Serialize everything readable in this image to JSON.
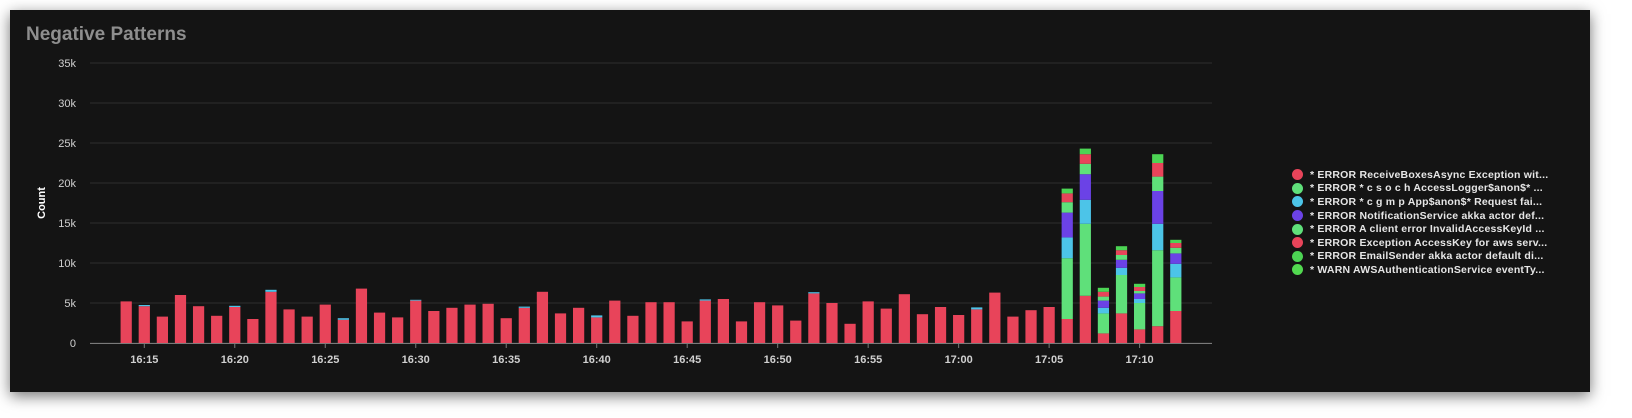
{
  "panel": {
    "title": "Negative Patterns"
  },
  "colors": {
    "background": "#141414",
    "grid": "#2e2e2e",
    "axis_text": "#d0d0d0"
  },
  "chart_data": {
    "type": "bar",
    "stacked": true,
    "ylabel": "Count",
    "ylim": [
      0,
      35000
    ],
    "yticks": [
      0,
      5000,
      10000,
      15000,
      20000,
      25000,
      30000,
      35000
    ],
    "ytick_labels": [
      "0",
      "5k",
      "10k",
      "15k",
      "20k",
      "25k",
      "30k",
      "35k"
    ],
    "x_start": "16:12",
    "x_end": "17:14",
    "xticks": [
      "16:15",
      "16:20",
      "16:25",
      "16:30",
      "16:35",
      "16:40",
      "16:45",
      "16:50",
      "16:55",
      "17:00",
      "17:05",
      "17:10"
    ],
    "grid": true,
    "legend_position": "right",
    "x": [
      "16:14",
      "16:15",
      "16:16",
      "16:17",
      "16:18",
      "16:19",
      "16:20",
      "16:21",
      "16:22",
      "16:23",
      "16:24",
      "16:25",
      "16:26",
      "16:27",
      "16:28",
      "16:29",
      "16:30",
      "16:31",
      "16:32",
      "16:33",
      "16:34",
      "16:35",
      "16:36",
      "16:37",
      "16:38",
      "16:39",
      "16:40",
      "16:41",
      "16:42",
      "16:43",
      "16:44",
      "16:45",
      "16:46",
      "16:47",
      "16:48",
      "16:49",
      "16:50",
      "16:51",
      "16:52",
      "16:53",
      "16:54",
      "16:55",
      "16:56",
      "16:57",
      "16:58",
      "16:59",
      "17:00",
      "17:01",
      "17:02",
      "17:03",
      "17:04",
      "17:05",
      "17:06",
      "17:07",
      "17:08",
      "17:09",
      "17:10",
      "17:11",
      "17:12"
    ],
    "series": [
      {
        "name": "* ERROR ReceiveBoxesAsync Exception wit...",
        "color": "#e8445a",
        "values": [
          5200,
          4600,
          3300,
          6000,
          4600,
          3400,
          4500,
          3000,
          6400,
          4200,
          3300,
          4800,
          2900,
          6800,
          3800,
          3200,
          5300,
          4000,
          4400,
          4800,
          4900,
          3100,
          4400,
          6400,
          3700,
          4400,
          3200,
          5300,
          3400,
          5100,
          5100,
          2700,
          5300,
          5500,
          2700,
          5100,
          4700,
          2800,
          6200,
          5000,
          2400,
          5200,
          4300,
          6100,
          3600,
          4500,
          3500,
          4200,
          6300,
          3300,
          4100,
          4500,
          3000,
          5900,
          1200,
          3700,
          1700,
          2100,
          4000
        ]
      },
      {
        "name": "* ERROR * c s o c h AccessLogger$anon$* ...",
        "color": "#5fe07a",
        "values": [
          0,
          0,
          0,
          0,
          0,
          0,
          0,
          0,
          0,
          0,
          0,
          0,
          0,
          0,
          0,
          0,
          0,
          0,
          0,
          0,
          0,
          0,
          0,
          0,
          0,
          0,
          0,
          0,
          0,
          0,
          0,
          0,
          0,
          0,
          0,
          0,
          0,
          0,
          0,
          0,
          0,
          0,
          0,
          0,
          0,
          0,
          0,
          0,
          0,
          0,
          0,
          0,
          7600,
          9000,
          2500,
          4800,
          3300,
          9500,
          4200
        ]
      },
      {
        "name": "* ERROR * c g m p App$anon$* Request fai...",
        "color": "#4cc4e8",
        "values": [
          0,
          150,
          0,
          0,
          0,
          0,
          150,
          0,
          250,
          0,
          0,
          0,
          200,
          0,
          0,
          0,
          100,
          0,
          0,
          0,
          0,
          0,
          150,
          0,
          0,
          0,
          250,
          0,
          0,
          0,
          0,
          0,
          150,
          0,
          0,
          0,
          0,
          0,
          150,
          0,
          0,
          0,
          0,
          0,
          0,
          0,
          0,
          250,
          0,
          0,
          0,
          0,
          2600,
          3000,
          700,
          900,
          500,
          3300,
          1700
        ]
      },
      {
        "name": "* ERROR NotificationService akka actor def...",
        "color": "#6b42e6",
        "values": [
          0,
          0,
          0,
          0,
          0,
          0,
          0,
          0,
          0,
          0,
          0,
          0,
          0,
          0,
          0,
          0,
          0,
          0,
          0,
          0,
          0,
          0,
          0,
          0,
          0,
          0,
          0,
          0,
          0,
          0,
          0,
          0,
          0,
          0,
          0,
          0,
          0,
          0,
          0,
          0,
          0,
          0,
          0,
          0,
          0,
          0,
          0,
          0,
          0,
          0,
          0,
          0,
          3100,
          3200,
          900,
          1000,
          700,
          4100,
          1300
        ]
      },
      {
        "name": "* ERROR A client error InvalidAccessKeyId ...",
        "color": "#5fe07a",
        "values": [
          0,
          0,
          0,
          0,
          0,
          0,
          0,
          0,
          0,
          0,
          0,
          0,
          0,
          0,
          0,
          0,
          0,
          0,
          0,
          0,
          0,
          0,
          0,
          0,
          0,
          0,
          0,
          0,
          0,
          0,
          0,
          0,
          0,
          0,
          0,
          0,
          0,
          0,
          0,
          0,
          0,
          0,
          0,
          0,
          0,
          0,
          0,
          0,
          0,
          0,
          0,
          0,
          1300,
          1300,
          500,
          600,
          300,
          1800,
          700
        ]
      },
      {
        "name": "* ERROR Exception AccessKey for aws serv...",
        "color": "#e8445a",
        "values": [
          0,
          0,
          0,
          0,
          0,
          0,
          0,
          0,
          0,
          0,
          0,
          0,
          0,
          0,
          0,
          0,
          0,
          0,
          0,
          0,
          0,
          0,
          0,
          0,
          0,
          0,
          0,
          0,
          0,
          0,
          0,
          0,
          0,
          0,
          0,
          0,
          0,
          0,
          0,
          0,
          0,
          0,
          0,
          0,
          0,
          0,
          0,
          0,
          0,
          0,
          0,
          0,
          1100,
          1200,
          600,
          600,
          500,
          1700,
          600
        ]
      },
      {
        "name": "* ERROR EmailSender akka actor default di...",
        "color": "#4cd454",
        "values": [
          0,
          0,
          0,
          0,
          0,
          0,
          0,
          0,
          0,
          0,
          0,
          0,
          0,
          0,
          0,
          0,
          0,
          0,
          0,
          0,
          0,
          0,
          0,
          0,
          0,
          0,
          0,
          0,
          0,
          0,
          0,
          0,
          0,
          0,
          0,
          0,
          0,
          0,
          0,
          0,
          0,
          0,
          0,
          0,
          0,
          0,
          0,
          0,
          0,
          0,
          0,
          0,
          600,
          700,
          500,
          500,
          400,
          1100,
          400
        ]
      },
      {
        "name": "* WARN AWSAuthenticationService eventTy...",
        "color": "#52d950",
        "values": [
          0,
          0,
          0,
          0,
          0,
          0,
          0,
          0,
          0,
          0,
          0,
          0,
          0,
          0,
          0,
          0,
          0,
          0,
          0,
          0,
          0,
          0,
          0,
          0,
          0,
          0,
          0,
          0,
          0,
          0,
          0,
          0,
          0,
          0,
          0,
          0,
          0,
          0,
          0,
          0,
          0,
          0,
          0,
          0,
          0,
          0,
          0,
          0,
          0,
          0,
          0,
          0,
          0,
          0,
          0,
          0,
          0,
          0,
          0
        ]
      }
    ]
  }
}
